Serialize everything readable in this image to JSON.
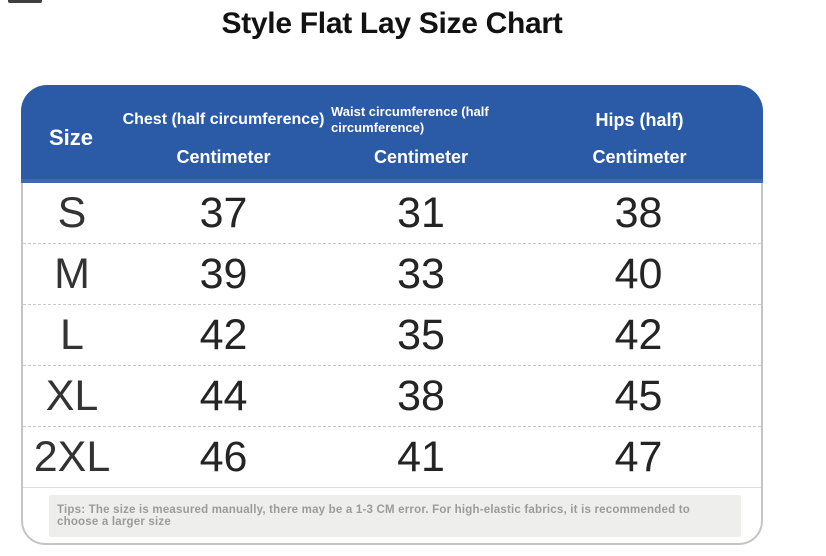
{
  "page": {
    "title": "Style Flat Lay Size Chart"
  },
  "size_chart": {
    "header": {
      "size_label": "Size",
      "columns": [
        {
          "id": "chest",
          "title": "Chest (half circumference)",
          "unit": "Centimeter"
        },
        {
          "id": "waist",
          "title": "Waist circumference (half circumference)",
          "unit": "Centimeter"
        },
        {
          "id": "hips",
          "title": "Hips (half)",
          "unit": "Centimeter"
        }
      ]
    },
    "rows": [
      {
        "size": "S",
        "chest": "37",
        "waist": "31",
        "hips": "38"
      },
      {
        "size": "M",
        "chest": "39",
        "waist": "33",
        "hips": "40"
      },
      {
        "size": "L",
        "chest": "42",
        "waist": "35",
        "hips": "42"
      },
      {
        "size": "XL",
        "chest": "44",
        "waist": "38",
        "hips": "45"
      },
      {
        "size": "2XL",
        "chest": "46",
        "waist": "41",
        "hips": "47"
      }
    ],
    "tips": "Tips: The size is measured manually, there may be a 1-3 CM error. For high-elastic fabrics, it is recommended to choose a larger size"
  },
  "colors": {
    "header_bg": "#2b5aa6",
    "header_text": "#ffffff",
    "body_text": "#242424",
    "border": "#c5c5c5",
    "row_divider": "#c9c9c9",
    "tips_text": "#9b9b9b",
    "tips_bg": "#eeeeec"
  },
  "chart_data": {
    "type": "table",
    "title": "Style Flat Lay Size Chart",
    "unit": "Centimeter",
    "columns": [
      "Size",
      "Chest (half circumference)",
      "Waist circumference (half circumference)",
      "Hips (half)"
    ],
    "rows": [
      [
        "S",
        37,
        31,
        38
      ],
      [
        "M",
        39,
        33,
        40
      ],
      [
        "L",
        42,
        35,
        42
      ],
      [
        "XL",
        44,
        38,
        45
      ],
      [
        "2XL",
        46,
        41,
        47
      ]
    ],
    "notes": "Tips: The size is measured manually, there may be a 1-3 CM error. For high-elastic fabrics, it is recommended to choose a larger size"
  }
}
